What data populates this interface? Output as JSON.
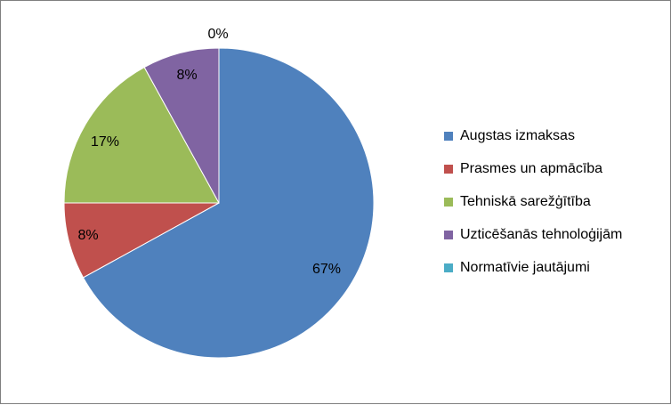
{
  "chart_data": {
    "type": "pie",
    "title": "",
    "categories": [
      "Augstas izmaksas",
      "Prasmes un apmācība",
      "Tehniskā sarežģītība",
      "Uzticēšanās tehnoloģijām",
      "Normatīvie jautājumi"
    ],
    "values": [
      67,
      8,
      17,
      8,
      0
    ],
    "labels": [
      "67%",
      "8%",
      "17%",
      "8%",
      "0%"
    ],
    "colors": [
      "#4f81bd",
      "#c0504d",
      "#9bbb59",
      "#8064a2",
      "#4bacc6"
    ],
    "legend_position": "right",
    "start_angle_deg": 0,
    "direction": "clockwise"
  }
}
